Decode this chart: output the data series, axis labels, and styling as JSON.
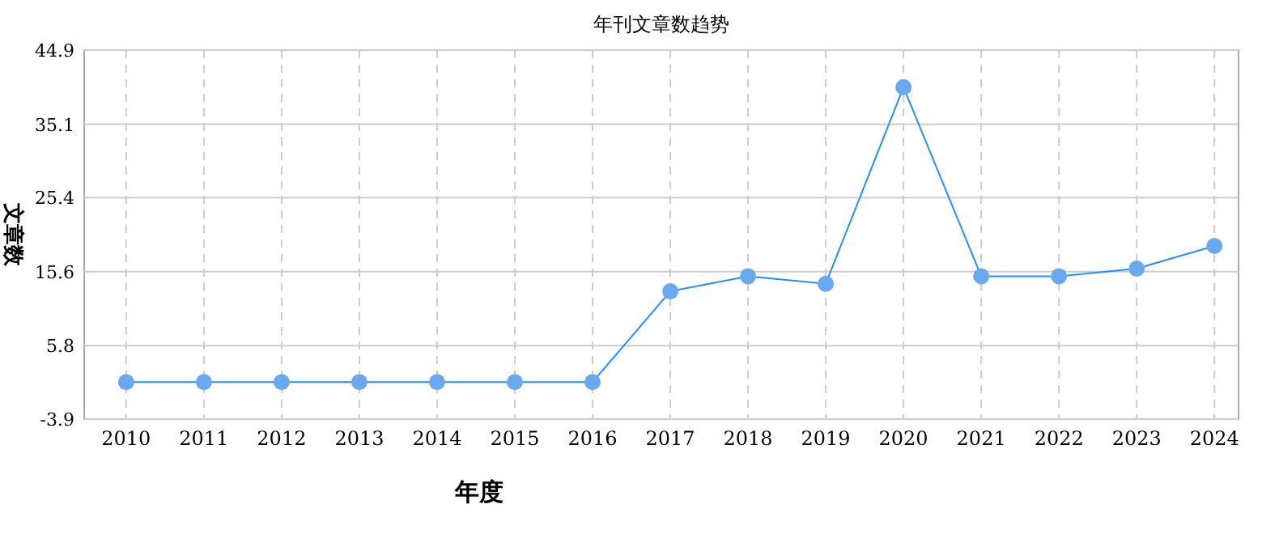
{
  "chart_data": {
    "type": "line",
    "title": "年刊文章数趋势",
    "xlabel": "年度",
    "ylabel": "文章数",
    "categories": [
      "2010",
      "2011",
      "2012",
      "2013",
      "2014",
      "2015",
      "2016",
      "2017",
      "2018",
      "2019",
      "2020",
      "2021",
      "2022",
      "2023",
      "2024"
    ],
    "series": [
      {
        "color": "#1e90ff",
        "values": [
          1,
          1,
          1,
          1,
          1,
          1,
          1,
          13,
          15,
          14,
          40,
          15,
          15,
          16,
          19
        ]
      }
    ],
    "ylim": [
      -3.9,
      44.9
    ],
    "yticks": [
      -3.9,
      5.8,
      15.6,
      25.4,
      35.1,
      44.9
    ],
    "grid": true,
    "marker": "circle",
    "line_style": "solid"
  }
}
